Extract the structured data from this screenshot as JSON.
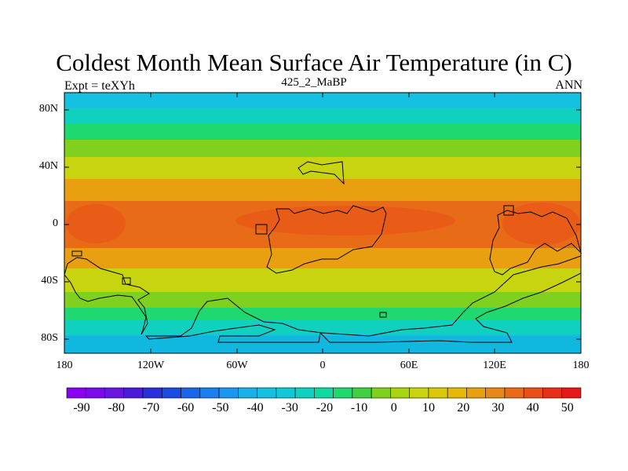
{
  "title": "Coldest Month Mean Surface Air Temperature (in C)",
  "subtitle_left": "Expt = teXYh",
  "subtitle_center": "425_2_MaBP",
  "subtitle_right": "ANN",
  "lat_labels": [
    "80N",
    "40N",
    "0",
    "40S",
    "80S"
  ],
  "lon_labels": [
    "180",
    "120W",
    "60W",
    "0",
    "60E",
    "120E",
    "180"
  ],
  "colorbar": {
    "labels": [
      "-90",
      "-80",
      "-70",
      "-60",
      "-50",
      "-40",
      "-30",
      "-20",
      "-10",
      "0",
      "10",
      "20",
      "30",
      "40",
      "50"
    ],
    "colors": [
      "#8a00f0",
      "#7a0ae8",
      "#6a14e0",
      "#4b1cd8",
      "#2a30d8",
      "#1a4ce0",
      "#1a66e8",
      "#1a80f0",
      "#1a98f0",
      "#1ab0ea",
      "#16c0e0",
      "#10c8d8",
      "#10d0c0",
      "#10d8a0",
      "#20d870",
      "#40d040",
      "#80d020",
      "#a8d410",
      "#c8d410",
      "#dcc80a",
      "#e8b808",
      "#e8a010",
      "#e88818",
      "#e86c18",
      "#e85018",
      "#e83018",
      "#e81818"
    ]
  },
  "map": {
    "bands": [
      {
        "color": "#16c0e0"
      },
      {
        "color": "#10d0c0"
      },
      {
        "color": "#20d870"
      },
      {
        "color": "#80d020"
      },
      {
        "color": "#c8d410"
      },
      {
        "color": "#e8a010"
      },
      {
        "color": "#e86c18"
      },
      {
        "color": "#e8a010"
      },
      {
        "color": "#c8d410"
      },
      {
        "color": "#80d020"
      },
      {
        "color": "#20d870"
      },
      {
        "color": "#10d0c0"
      },
      {
        "color": "#16c0e0"
      }
    ]
  }
}
